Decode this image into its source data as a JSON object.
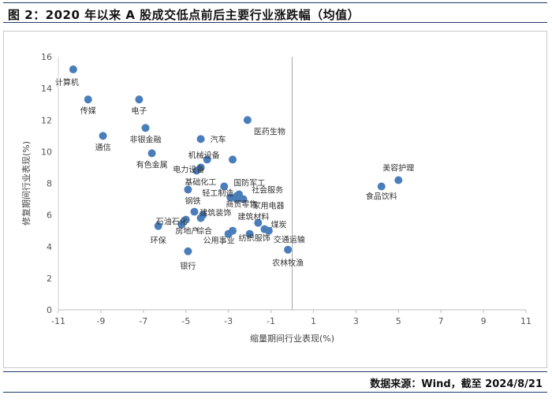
{
  "header": {
    "title": "图 2：2020 年以来 A 股成交低点前后主要行业涨跌幅（均值）"
  },
  "footer": {
    "source": "数据来源：Wind，截至  2024/8/21"
  },
  "chart_data": {
    "type": "scatter",
    "title": "",
    "xlabel": "缩量期间行业表现(%)",
    "ylabel": "修复期间行业表现(%)",
    "xlim": [
      -11,
      11
    ],
    "ylim": [
      0,
      16
    ],
    "xticks": [
      -11,
      -9,
      -7,
      -5,
      -3,
      -1,
      1,
      3,
      5,
      7,
      9,
      11
    ],
    "yticks": [
      0,
      2,
      4,
      6,
      8,
      10,
      12,
      14,
      16
    ],
    "tick_labels_x": [
      "-11",
      "-9",
      "-7",
      "-5",
      "-3",
      "-1",
      "1",
      "3",
      "5",
      "7",
      "9",
      "11"
    ],
    "tick_labels_y": [
      "0",
      "2",
      "4",
      "6",
      "8",
      "10",
      "12",
      "14",
      "16"
    ],
    "grid": false,
    "reference_line_x": 0,
    "marker_color": "#4a7ebb",
    "points": [
      {
        "label": "计算机",
        "x": -10.3,
        "y": 15.2
      },
      {
        "label": "传媒",
        "x": -9.6,
        "y": 13.3
      },
      {
        "label": "电子",
        "x": -7.2,
        "y": 13.3
      },
      {
        "label": "非银金融",
        "x": -6.9,
        "y": 11.5
      },
      {
        "label": "通信",
        "x": -8.9,
        "y": 11.0
      },
      {
        "label": "有色金属",
        "x": -6.6,
        "y": 9.9
      },
      {
        "label": "汽车",
        "x": -4.3,
        "y": 10.8
      },
      {
        "label": "医药生物",
        "x": -2.1,
        "y": 12.0
      },
      {
        "label": "机械设备",
        "x": -4.0,
        "y": 9.5
      },
      {
        "label": "",
        "x": -2.8,
        "y": 9.5
      },
      {
        "label": "电力设备",
        "x": -4.5,
        "y": 8.8
      },
      {
        "label": "",
        "x": -4.3,
        "y": 9.0
      },
      {
        "label": "国防军工",
        "x": -3.2,
        "y": 7.8
      },
      {
        "label": "基础化工",
        "x": -4.9,
        "y": 7.6
      },
      {
        "label": "轻工制造",
        "x": -2.9,
        "y": 7.1
      },
      {
        "label": "",
        "x": -2.6,
        "y": 7.2
      },
      {
        "label": "社会服务",
        "x": -2.5,
        "y": 7.3
      },
      {
        "label": "商贸零售",
        "x": -2.6,
        "y": 7.0
      },
      {
        "label": "家用电器",
        "x": -2.3,
        "y": 7.0
      },
      {
        "label": "钢铁",
        "x": -4.6,
        "y": 6.2
      },
      {
        "label": "建筑装饰",
        "x": -4.2,
        "y": 6.0
      },
      {
        "label": "",
        "x": -4.3,
        "y": 5.8
      },
      {
        "label": "石油石化",
        "x": -5.0,
        "y": 5.7
      },
      {
        "label": "房地产",
        "x": -5.2,
        "y": 5.4
      },
      {
        "label": "环保",
        "x": -6.3,
        "y": 5.3
      },
      {
        "label": "建筑材料",
        "x": -1.6,
        "y": 5.5
      },
      {
        "label": "煤炭",
        "x": -1.3,
        "y": 5.1
      },
      {
        "label": "综合",
        "x": -2.8,
        "y": 5.0
      },
      {
        "label": "公用事业",
        "x": -3.0,
        "y": 4.8
      },
      {
        "label": "纺织服饰",
        "x": -2.0,
        "y": 4.8
      },
      {
        "label": "交通运输",
        "x": -1.1,
        "y": 5.0
      },
      {
        "label": "银行",
        "x": -4.9,
        "y": 3.7
      },
      {
        "label": "农林牧渔",
        "x": -0.2,
        "y": 3.8
      },
      {
        "label": "美容护理",
        "x": 5.0,
        "y": 8.2
      },
      {
        "label": "食品饮料",
        "x": 4.2,
        "y": 7.8
      }
    ]
  }
}
